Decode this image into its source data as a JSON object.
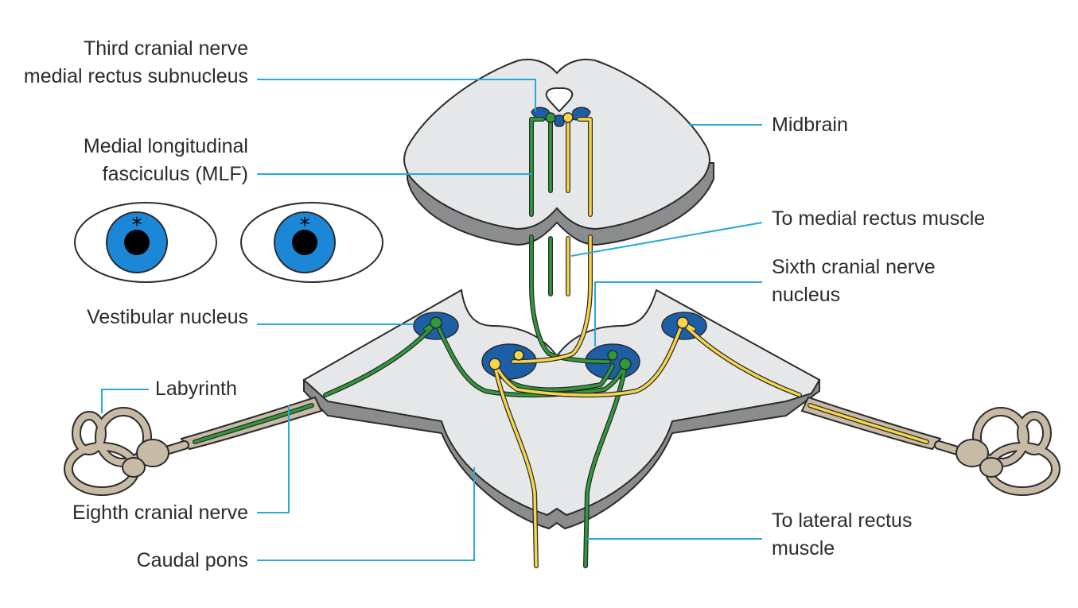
{
  "diagram": {
    "labels": {
      "third_nerve_line1": "Third cranial nerve",
      "third_nerve_line2": "medial rectus subnucleus",
      "mlf_line1": "Medial longitudinal",
      "mlf_line2": "fasciculus (MLF)",
      "vestibular": "Vestibular nucleus",
      "labyrinth": "Labyrinth",
      "eighth_nerve": "Eighth cranial nerve",
      "caudal_pons": "Caudal pons",
      "midbrain": "Midbrain",
      "to_medial_rectus": "To medial rectus muscle",
      "sixth_nerve_line1": "Sixth cranial nerve",
      "sixth_nerve_line2": "nucleus",
      "to_lateral_line1": "To lateral rectus",
      "to_lateral_line2": "muscle"
    },
    "eye_marker": "*",
    "colors": {
      "brain_fill": "#e6e7e8",
      "brain_side": "#8a8c8e",
      "outline": "#2b2b2b",
      "nucleus": "#1d5fa7",
      "green_pathway": "#2e9a3b",
      "yellow_pathway": "#f6d54a",
      "leader_line": "#29a8df",
      "labyrinth": "#c7bba6",
      "iris": "#1b87d6"
    }
  }
}
